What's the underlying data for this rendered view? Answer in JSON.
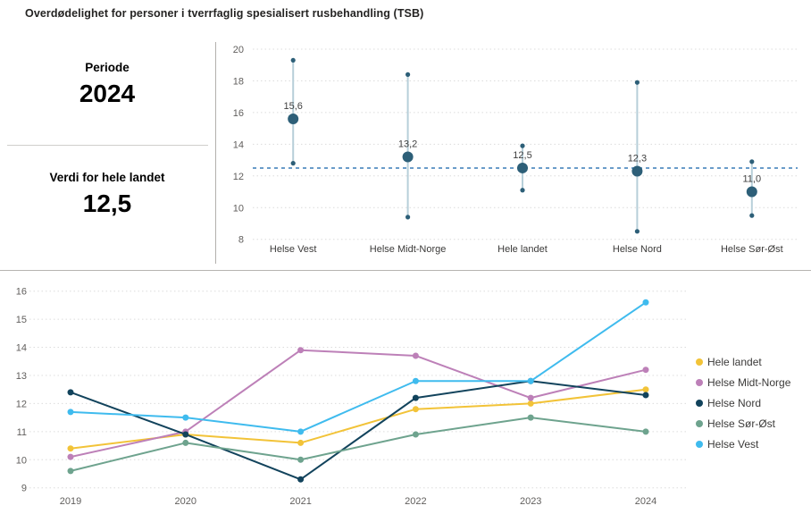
{
  "title": "Overdødelighet for personer i tverrfaglig spesialisert rusbehandling (TSB)",
  "left_panel": {
    "periode_label": "Periode",
    "periode_value": "2024",
    "verdi_label": "Verdi for hele landet",
    "verdi_value": "12,5"
  },
  "styles": {
    "dot_color": "#2d5f78",
    "error_bar_color": "#b7cfd9",
    "reference_line_color": "#6a9cc9",
    "grid_color": "#dcdcdc",
    "axis_text_color": "#605e5c",
    "label_text_color": "#3b3a39",
    "value_label_color": "#404040"
  },
  "chart_data": [
    {
      "type": "scatter",
      "subtype": "dot_plot_with_error_bars",
      "title": "",
      "categories": [
        "Helse Vest",
        "Helse Midt-Norge",
        "Hele landet",
        "Helse Nord",
        "Helse Sør-Øst"
      ],
      "values": [
        15.6,
        13.2,
        12.5,
        12.3,
        11.0
      ],
      "value_labels": [
        "15,6",
        "13,2",
        "12,5",
        "12,3",
        "11,0"
      ],
      "upper": [
        19.3,
        18.4,
        13.9,
        17.9,
        12.9
      ],
      "lower": [
        12.8,
        9.4,
        11.1,
        8.5,
        9.5
      ],
      "reference_line": 12.5,
      "ylim": [
        8,
        20
      ],
      "yticks": [
        8,
        10,
        12,
        14,
        16,
        18,
        20
      ],
      "grid": true
    },
    {
      "type": "line",
      "title": "",
      "x": [
        "2019",
        "2020",
        "2021",
        "2022",
        "2023",
        "2024"
      ],
      "series": [
        {
          "name": "Hele landet",
          "color": "#f2c338",
          "values": [
            10.4,
            10.9,
            10.6,
            11.8,
            12.0,
            12.5
          ]
        },
        {
          "name": "Helse Midt-Norge",
          "color": "#bd80b8",
          "values": [
            10.1,
            11.0,
            13.9,
            13.7,
            12.2,
            13.2
          ]
        },
        {
          "name": "Helse Nord",
          "color": "#12435c",
          "values": [
            12.4,
            10.9,
            9.3,
            12.2,
            12.8,
            12.3
          ]
        },
        {
          "name": "Helse Sør-Øst",
          "color": "#6ea38e",
          "values": [
            9.6,
            10.6,
            10.0,
            10.9,
            11.5,
            11.0
          ]
        },
        {
          "name": "Helse Vest",
          "color": "#3fbbee",
          "values": [
            11.7,
            11.5,
            11.0,
            12.8,
            12.8,
            15.6
          ]
        }
      ],
      "ylim": [
        9,
        16
      ],
      "yticks": [
        9,
        10,
        11,
        12,
        13,
        14,
        15,
        16
      ],
      "legend_position": "right",
      "grid": true
    }
  ]
}
